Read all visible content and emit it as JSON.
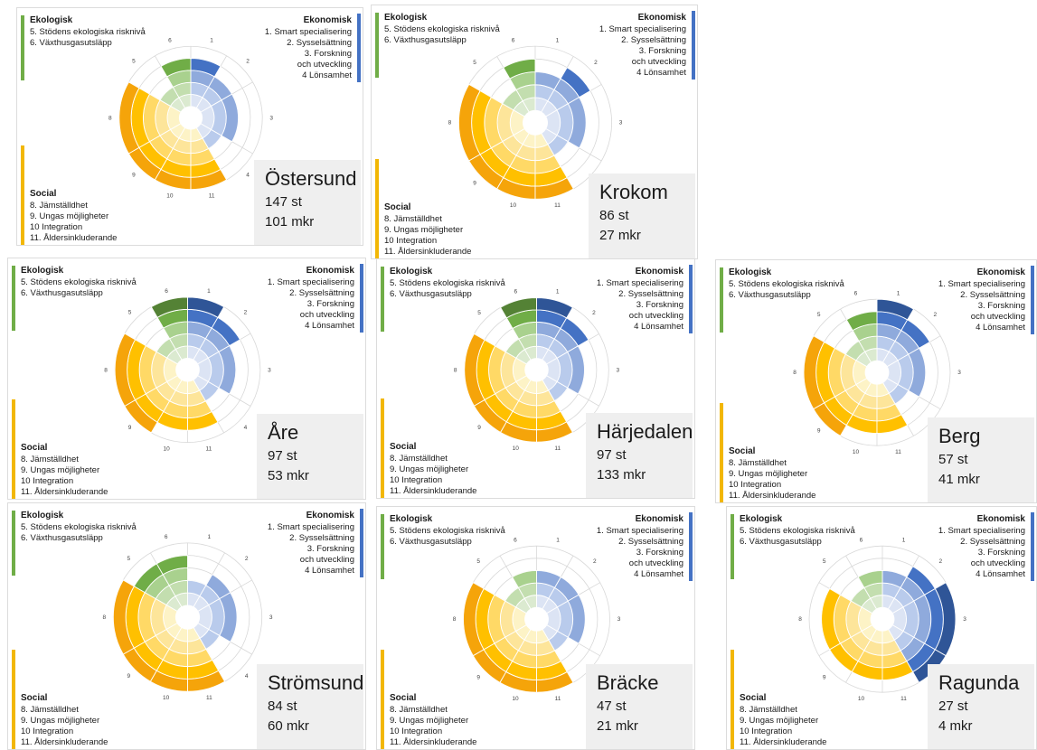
{
  "labels": {
    "ekologisk_title": "Ekologisk",
    "ekologisk_items": [
      "5. Stödens ekologiska risknivå",
      "6. Växthusgasutsläpp"
    ],
    "ekonomisk_title": "Ekonomisk",
    "ekonomisk_items": [
      "1. Smart specialisering",
      "2. Sysselsättning",
      "3. Forskning",
      "och utveckling",
      "4 Lönsamhet"
    ],
    "social_title": "Social",
    "social_items": [
      "8. Jämställdhet",
      "9. Ungas möjligheter",
      "10 Integration",
      "11. Åldersinkluderande"
    ],
    "segment_numbers": [
      "1",
      "2",
      "3",
      "4",
      "5",
      "6",
      "8",
      "9",
      "10",
      "11"
    ]
  },
  "colors": {
    "ekologisk": "#70ad47",
    "ekonomisk": "#4472c4",
    "social": "#f2b705",
    "ring_colors": {
      "blue": [
        "#dce4f4",
        "#b9cbec",
        "#8faadc",
        "#4472c4",
        "#2f5597"
      ],
      "green": [
        "#dbead0",
        "#c3deaf",
        "#a9d18e",
        "#70ad47",
        "#548235"
      ],
      "orange": [
        "#fdf3c6",
        "#fde59a",
        "#ffd966",
        "#ffc000",
        "#f5a40a"
      ]
    }
  },
  "chart_data": [
    {
      "type": "polar-area",
      "municipality": "Östersund",
      "count": "147 st",
      "amount": "101 mkr",
      "categories": [
        "1",
        "2",
        "3",
        "4",
        "5",
        "6",
        "8",
        "9",
        "10",
        "11"
      ],
      "values": [
        4,
        3,
        3,
        2,
        2,
        4,
        5,
        5,
        5,
        5
      ],
      "ring_max": 5
    },
    {
      "type": "polar-area",
      "municipality": "Krokom",
      "count": "86 st",
      "amount": "27 mkr",
      "categories": [
        "1",
        "2",
        "3",
        "4",
        "5",
        "6",
        "8",
        "9",
        "10",
        "11"
      ],
      "values": [
        3,
        4,
        3,
        2,
        2,
        4,
        5,
        5,
        5,
        5
      ],
      "ring_max": 5
    },
    {
      "type": "polar-area",
      "municipality": "Åre",
      "count": "97 st",
      "amount": "53 mkr",
      "categories": [
        "1",
        "2",
        "3",
        "4",
        "5",
        "6",
        "8",
        "9",
        "10",
        "11"
      ],
      "values": [
        5,
        4,
        3,
        2,
        2,
        5,
        5,
        5,
        4,
        4
      ],
      "ring_max": 5
    },
    {
      "type": "polar-area",
      "municipality": "Härjedalen",
      "count": "97 st",
      "amount": "133 mkr",
      "categories": [
        "1",
        "2",
        "3",
        "4",
        "5",
        "6",
        "8",
        "9",
        "10",
        "11"
      ],
      "values": [
        5,
        4,
        3,
        2,
        2,
        5,
        5,
        5,
        5,
        5
      ],
      "ring_max": 5
    },
    {
      "type": "polar-area",
      "municipality": "Berg",
      "count": "57 st",
      "amount": "41 mkr",
      "categories": [
        "1",
        "2",
        "3",
        "4",
        "5",
        "6",
        "8",
        "9",
        "10",
        "11"
      ],
      "values": [
        5,
        4,
        3,
        2,
        2,
        4,
        5,
        5,
        4,
        4
      ],
      "ring_max": 5
    },
    {
      "type": "polar-area",
      "municipality": "Strömsund",
      "count": "84 st",
      "amount": "60 mkr",
      "categories": [
        "1",
        "2",
        "3",
        "4",
        "5",
        "6",
        "8",
        "9",
        "10",
        "11"
      ],
      "values": [
        2,
        3,
        3,
        2,
        4,
        4,
        5,
        5,
        5,
        5
      ],
      "ring_max": 5
    },
    {
      "type": "polar-area",
      "municipality": "Bräcke",
      "count": "47 st",
      "amount": "21 mkr",
      "categories": [
        "1",
        "2",
        "3",
        "4",
        "5",
        "6",
        "8",
        "9",
        "10",
        "11"
      ],
      "values": [
        3,
        3,
        3,
        2,
        2,
        3,
        5,
        5,
        5,
        5
      ],
      "ring_max": 5
    },
    {
      "type": "polar-area",
      "municipality": "Ragunda",
      "count": "27 st",
      "amount": "4 mkr",
      "categories": [
        "1",
        "2",
        "3",
        "4",
        "5",
        "6",
        "8",
        "9",
        "10",
        "11"
      ],
      "values": [
        3,
        4,
        5,
        5,
        2,
        3,
        4,
        4,
        4,
        4
      ],
      "ring_max": 5
    }
  ]
}
